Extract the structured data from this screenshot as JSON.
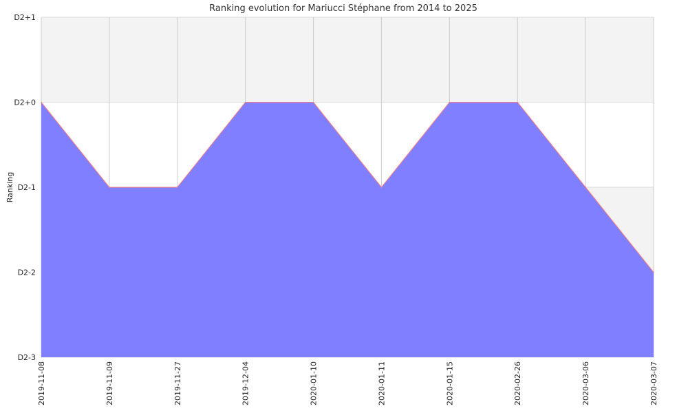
{
  "chart_data": {
    "type": "area",
    "title": "Ranking evolution for Mariucci Stéphane from 2014 to 2025",
    "xlabel": "",
    "ylabel": "Ranking",
    "x": [
      "2019-11-08",
      "2019-11-09",
      "2019-11-27",
      "2019-12-04",
      "2020-01-10",
      "2020-01-11",
      "2020-01-15",
      "2020-02-26",
      "2020-03-06",
      "2020-03-07"
    ],
    "y_ticks": [
      "D2+1",
      "D2+0",
      "D2-1",
      "D2-2",
      "D2-3"
    ],
    "series": [
      {
        "values": [
          "D2+0",
          "D2-1",
          "D2-1",
          "D2+0",
          "D2+0",
          "D2-1",
          "D2+0",
          "D2+0",
          "D2-1",
          "D2-2"
        ]
      }
    ],
    "ylim": [
      "D2-3",
      "D2+1"
    ],
    "grid": true,
    "colors": {
      "fill": "#7f7fff",
      "line": "#ff7f7f",
      "band": "#f3f3f3"
    }
  }
}
